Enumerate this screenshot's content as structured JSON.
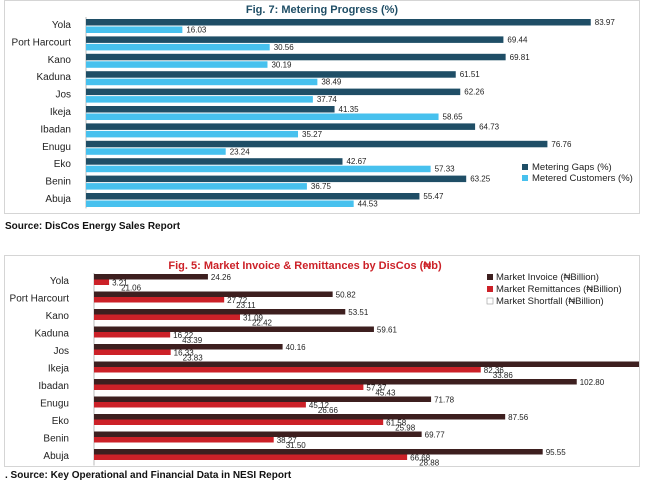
{
  "chart_data": [
    {
      "type": "bar",
      "orientation": "horizontal",
      "title": "Fig. 7: Metering Progress (%)",
      "categories": [
        "Yola",
        "Port Harcourt",
        "Kano",
        "Kaduna",
        "Jos",
        "Ikeja",
        "Ibadan",
        "Enugu",
        "Eko",
        "Benin",
        "Abuja"
      ],
      "series": [
        {
          "name": "Metering Gaps (%)",
          "color": "#1f4e66",
          "values": [
            83.97,
            69.44,
            69.81,
            61.51,
            62.26,
            41.35,
            64.73,
            76.76,
            42.67,
            63.25,
            55.47
          ]
        },
        {
          "name": "Metered Customers (%)",
          "color": "#47c1ee",
          "values": [
            16.03,
            30.56,
            30.19,
            38.49,
            37.74,
            58.65,
            35.27,
            23.24,
            57.33,
            36.75,
            44.53
          ]
        }
      ],
      "xlim": [
        0,
        90
      ],
      "legend": "right",
      "grid": false,
      "source": "Source: DisCos Energy Sales Report"
    },
    {
      "type": "bar",
      "orientation": "horizontal",
      "title": "Fig. 5: Market Invoice & Remittances by DisCos (₦b)",
      "categories": [
        "Yola",
        "Port Harcourt",
        "Kano",
        "Kaduna",
        "Jos",
        "Ikeja",
        "Ibadan",
        "Enugu",
        "Eko",
        "Benin",
        "Abuja"
      ],
      "series": [
        {
          "name": "Market Invoice (₦Billion)",
          "color": "#3d1f1f",
          "values": [
            24.26,
            50.82,
            53.51,
            59.61,
            40.16,
            116.22,
            102.8,
            71.78,
            87.56,
            69.77,
            95.55
          ]
        },
        {
          "name": "Market Remittances (₦Billion)",
          "color": "#cc2128",
          "values": [
            3.21,
            27.72,
            31.09,
            16.22,
            16.33,
            82.36,
            57.37,
            45.12,
            61.58,
            38.27,
            66.68
          ]
        },
        {
          "name": "Market Shortfall (₦Billion)",
          "color": "#ffffff",
          "values": [
            21.06,
            23.11,
            22.42,
            43.39,
            23.83,
            33.86,
            45.43,
            26.66,
            25.98,
            31.5,
            28.88
          ]
        }
      ],
      "xlim": [
        0,
        125
      ],
      "legend": "top-right",
      "grid": false,
      "source": ". Source: Key Operational and Financial Data in NESI Report"
    }
  ]
}
